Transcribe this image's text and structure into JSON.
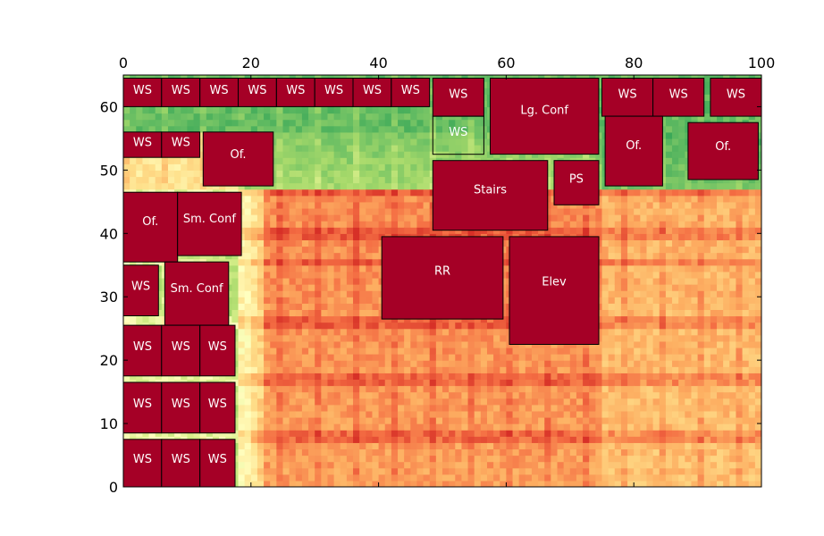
{
  "chart_data": {
    "type": "heatmap",
    "title": "",
    "xlabel": "",
    "ylabel": "",
    "xlim": [
      0,
      100
    ],
    "ylim": [
      0,
      65
    ],
    "x_axis_position": "top",
    "x_ticks": [
      0,
      20,
      40,
      60,
      80,
      100
    ],
    "y_ticks": [
      0,
      10,
      20,
      30,
      40,
      50,
      60
    ],
    "x_tick_labels": [
      "0",
      "20",
      "40",
      "60",
      "80",
      "100"
    ],
    "y_tick_labels": [
      "0",
      "10",
      "20",
      "30",
      "40",
      "50",
      "60"
    ],
    "colormap": "RdYlGn_r",
    "colors": {
      "room_fill": "#a50026",
      "room_stroke": "#000000",
      "room_label": "#ffffff",
      "heat_low": "#66bd63",
      "heat_mid": "#ffffbf",
      "heat_high": "#f46d43"
    },
    "background_regions": [
      {
        "name": "top-room-zone",
        "x0": 0,
        "x1": 100,
        "y0": 56,
        "y1": 65,
        "level": 0.15
      },
      {
        "name": "upper-green-zone",
        "x0": 18,
        "x1": 100,
        "y0": 47,
        "y1": 56,
        "level": 0.25
      },
      {
        "name": "middle-warm-zone",
        "x0": 18,
        "x1": 100,
        "y0": 0,
        "y1": 47,
        "level": 0.78
      },
      {
        "name": "left-corridor",
        "x0": 0,
        "x1": 18,
        "y0": 0,
        "y1": 47,
        "level": 0.35
      }
    ],
    "rooms": [
      {
        "label": "WS",
        "x0": 0,
        "x1": 6,
        "y0": 60,
        "y1": 64.5
      },
      {
        "label": "WS",
        "x0": 6,
        "x1": 12,
        "y0": 60,
        "y1": 64.5
      },
      {
        "label": "WS",
        "x0": 12,
        "x1": 18,
        "y0": 60,
        "y1": 64.5
      },
      {
        "label": "WS",
        "x0": 18,
        "x1": 24,
        "y0": 60,
        "y1": 64.5
      },
      {
        "label": "WS",
        "x0": 24,
        "x1": 30,
        "y0": 60,
        "y1": 64.5
      },
      {
        "label": "WS",
        "x0": 30,
        "x1": 36,
        "y0": 60,
        "y1": 64.5
      },
      {
        "label": "WS",
        "x0": 36,
        "x1": 42,
        "y0": 60,
        "y1": 64.5
      },
      {
        "label": "WS",
        "x0": 42,
        "x1": 48,
        "y0": 60,
        "y1": 64.5
      },
      {
        "label": "WS",
        "x0": 48.5,
        "x1": 56.5,
        "y0": 58.5,
        "y1": 64.5
      },
      {
        "label": "WS",
        "x0": 48.5,
        "x1": 56.5,
        "y0": 52.5,
        "y1": 58.5,
        "translucent": true
      },
      {
        "label": "Lg. Conf",
        "x0": 57.5,
        "x1": 74.5,
        "y0": 52.5,
        "y1": 64.5
      },
      {
        "label": "WS",
        "x0": 75,
        "x1": 83,
        "y0": 58.5,
        "y1": 64.5
      },
      {
        "label": "WS",
        "x0": 83,
        "x1": 91,
        "y0": 58.5,
        "y1": 64.5
      },
      {
        "label": "WS",
        "x0": 92,
        "x1": 100,
        "y0": 58.5,
        "y1": 64.5
      },
      {
        "label": "WS",
        "x0": 0,
        "x1": 6,
        "y0": 52,
        "y1": 56
      },
      {
        "label": "WS",
        "x0": 6,
        "x1": 12,
        "y0": 52,
        "y1": 56
      },
      {
        "label": "Of.",
        "x0": 12.5,
        "x1": 23.5,
        "y0": 47.5,
        "y1": 56
      },
      {
        "label": "Stairs",
        "x0": 48.5,
        "x1": 66.5,
        "y0": 40.5,
        "y1": 51.5
      },
      {
        "label": "PS",
        "x0": 67.5,
        "x1": 74.5,
        "y0": 44.5,
        "y1": 51.5
      },
      {
        "label": "Of.",
        "x0": 75.5,
        "x1": 84.5,
        "y0": 47.5,
        "y1": 58.5
      },
      {
        "label": "Of.",
        "x0": 88.5,
        "x1": 99.5,
        "y0": 48.5,
        "y1": 57.5
      },
      {
        "label": "Of.",
        "x0": 0,
        "x1": 8.5,
        "y0": 35.5,
        "y1": 46.5
      },
      {
        "label": "Sm. Conf",
        "x0": 8.5,
        "x1": 18.5,
        "y0": 36.5,
        "y1": 46.5
      },
      {
        "label": "RR",
        "x0": 40.5,
        "x1": 59.5,
        "y0": 26.5,
        "y1": 39.5
      },
      {
        "label": "Elev",
        "x0": 60.5,
        "x1": 74.5,
        "y0": 22.5,
        "y1": 39.5
      },
      {
        "label": "WS",
        "x0": 0,
        "x1": 5.5,
        "y0": 27,
        "y1": 35
      },
      {
        "label": "Sm. Conf",
        "x0": 6.5,
        "x1": 16.5,
        "y0": 25.5,
        "y1": 35.5
      },
      {
        "label": "WS",
        "x0": 0,
        "x1": 6,
        "y0": 17.5,
        "y1": 25.5
      },
      {
        "label": "WS",
        "x0": 6,
        "x1": 12,
        "y0": 17.5,
        "y1": 25.5
      },
      {
        "label": "WS",
        "x0": 12,
        "x1": 17.5,
        "y0": 17.5,
        "y1": 25.5
      },
      {
        "label": "WS",
        "x0": 0,
        "x1": 6,
        "y0": 8.5,
        "y1": 16.5
      },
      {
        "label": "WS",
        "x0": 6,
        "x1": 12,
        "y0": 8.5,
        "y1": 16.5
      },
      {
        "label": "WS",
        "x0": 12,
        "x1": 17.5,
        "y0": 8.5,
        "y1": 16.5
      },
      {
        "label": "WS",
        "x0": 0,
        "x1": 6,
        "y0": 0,
        "y1": 7.5
      },
      {
        "label": "WS",
        "x0": 6,
        "x1": 12,
        "y0": 0,
        "y1": 7.5
      },
      {
        "label": "WS",
        "x0": 12,
        "x1": 17.5,
        "y0": 0,
        "y1": 7.5
      }
    ]
  }
}
